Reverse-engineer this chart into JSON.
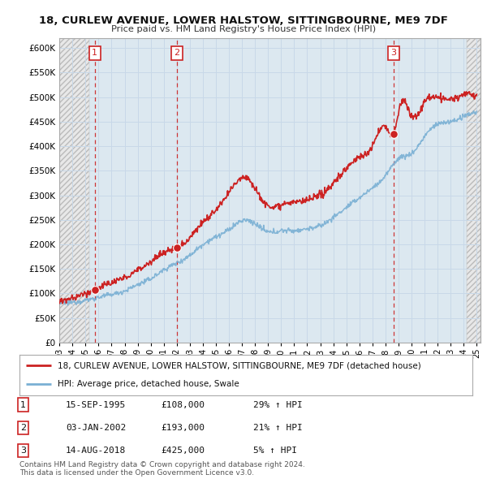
{
  "title1": "18, CURLEW AVENUE, LOWER HALSTOW, SITTINGBOURNE, ME9 7DF",
  "title2": "Price paid vs. HM Land Registry's House Price Index (HPI)",
  "legend_line1": "18, CURLEW AVENUE, LOWER HALSTOW, SITTINGBOURNE, ME9 7DF (detached house)",
  "legend_line2": "HPI: Average price, detached house, Swale",
  "transactions": [
    {
      "num": 1,
      "date": "15-SEP-1995",
      "price": 108000,
      "hpi_str": "29% ↑ HPI",
      "x": 1995.71
    },
    {
      "num": 2,
      "date": "03-JAN-2002",
      "price": 193000,
      "hpi_str": "21% ↑ HPI",
      "x": 2002.01
    },
    {
      "num": 3,
      "date": "14-AUG-2018",
      "price": 425000,
      "hpi_str": "5% ↑ HPI",
      "x": 2018.62
    }
  ],
  "footer1": "Contains HM Land Registry data © Crown copyright and database right 2024.",
  "footer2": "This data is licensed under the Open Government Licence v3.0.",
  "ylim": [
    0,
    620000
  ],
  "yticks": [
    0,
    50000,
    100000,
    150000,
    200000,
    250000,
    300000,
    350000,
    400000,
    450000,
    500000,
    550000,
    600000
  ],
  "ytick_labels": [
    "£0",
    "£50K",
    "£100K",
    "£150K",
    "£200K",
    "£250K",
    "£300K",
    "£350K",
    "£400K",
    "£450K",
    "£500K",
    "£550K",
    "£600K"
  ],
  "grid_color": "#c8d8e8",
  "plot_bg_color": "#dce8f0",
  "hatch_bg_color": "#e8e8e8",
  "hpi_color": "#7ab0d4",
  "price_color": "#cc2222",
  "dashed_line_color": "#cc2222",
  "marker_color": "#cc2222",
  "xlim_start": 1993,
  "xlim_end": 2025.3
}
